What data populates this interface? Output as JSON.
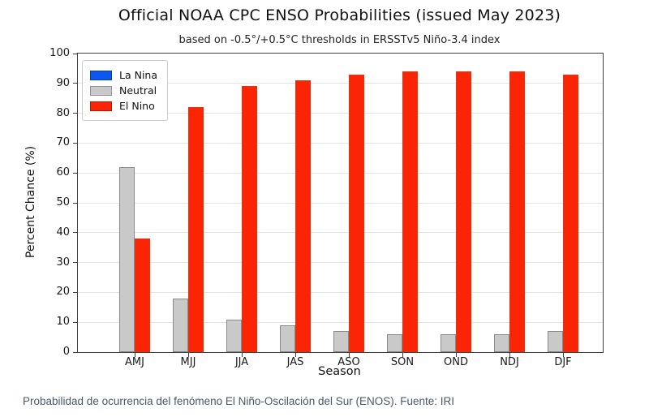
{
  "page": {
    "caption": "Probabilidad de ocurrencia del fenómeno El Niño-Oscilación del Sur (ENOS). Fuente: IRI",
    "caption_color": "#47596b"
  },
  "chart_data": {
    "type": "bar",
    "title": "Official NOAA CPC ENSO Probabilities (issued May 2023)",
    "subtitle": "based on -0.5°/+0.5°C thresholds in ERSSTv5 Niño-3.4 index",
    "xlabel": "Season",
    "ylabel": "Percent Chance (%)",
    "ylim": [
      0,
      100
    ],
    "yticks": [
      0,
      10,
      20,
      30,
      40,
      50,
      60,
      70,
      80,
      90,
      100
    ],
    "grid": true,
    "legend_position": "upper-left",
    "categories": [
      "AMJ",
      "MJJ",
      "JJA",
      "JAS",
      "ASO",
      "SON",
      "OND",
      "NDJ",
      "DJF"
    ],
    "series": [
      {
        "name": "La Nina",
        "color": "#0b57f0",
        "edge": "#0a3fc0",
        "values": [
          0,
          0,
          0,
          0,
          0,
          0,
          0,
          0,
          0
        ]
      },
      {
        "name": "Neutral",
        "color": "#c9c9c9",
        "edge": "#8a8a8a",
        "values": [
          62,
          18,
          11,
          9,
          7,
          6,
          6,
          6,
          7
        ]
      },
      {
        "name": "El Nino",
        "color": "#fb2505",
        "edge": "#d23a1a",
        "values": [
          38,
          82,
          89,
          91,
          93,
          94,
          94,
          94,
          93
        ]
      }
    ]
  }
}
